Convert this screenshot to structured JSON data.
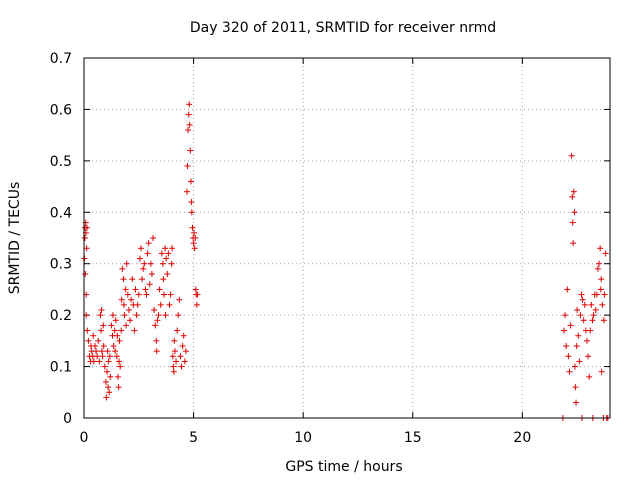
{
  "chart_data": {
    "type": "scatter",
    "title": "Day 320 of 2011, SRMTID for receiver nrmd",
    "xlabel": "GPS time / hours",
    "ylabel": "SRMTID / TECUs",
    "xlim": [
      0,
      24
    ],
    "ylim": [
      0,
      0.7
    ],
    "xticks": [
      0,
      5,
      10,
      15,
      20
    ],
    "yticks": [
      0,
      0.1,
      0.2,
      0.3,
      0.4,
      0.5,
      0.6,
      0.7
    ],
    "grid": true,
    "marker": "plus",
    "color": "#e00000",
    "series": [
      {
        "name": "nrmd",
        "points": [
          [
            0.02,
            0.31
          ],
          [
            0.04,
            0.35
          ],
          [
            0.05,
            0.37
          ],
          [
            0.06,
            0.28
          ],
          [
            0.08,
            0.38
          ],
          [
            0.09,
            0.36
          ],
          [
            0.1,
            0.24
          ],
          [
            0.1,
            0.2
          ],
          [
            0.12,
            0.33
          ],
          [
            0.14,
            0.37
          ],
          [
            0.15,
            0.17
          ],
          [
            0.2,
            0.15
          ],
          [
            0.25,
            0.12
          ],
          [
            0.3,
            0.11
          ],
          [
            0.32,
            0.14
          ],
          [
            0.35,
            0.13
          ],
          [
            0.4,
            0.12
          ],
          [
            0.42,
            0.16
          ],
          [
            0.45,
            0.11
          ],
          [
            0.5,
            0.14
          ],
          [
            0.55,
            0.13
          ],
          [
            0.6,
            0.12
          ],
          [
            0.65,
            0.15
          ],
          [
            0.7,
            0.11
          ],
          [
            0.75,
            0.2
          ],
          [
            0.78,
            0.17
          ],
          [
            0.8,
            0.21
          ],
          [
            0.82,
            0.13
          ],
          [
            0.85,
            0.12
          ],
          [
            0.88,
            0.18
          ],
          [
            0.9,
            0.14
          ],
          [
            0.95,
            0.1
          ],
          [
            1.0,
            0.07
          ],
          [
            1.02,
            0.04
          ],
          [
            1.05,
            0.09
          ],
          [
            1.08,
            0.13
          ],
          [
            1.1,
            0.06
          ],
          [
            1.12,
            0.11
          ],
          [
            1.15,
            0.05
          ],
          [
            1.18,
            0.12
          ],
          [
            1.2,
            0.08
          ],
          [
            1.25,
            0.18
          ],
          [
            1.3,
            0.16
          ],
          [
            1.32,
            0.2
          ],
          [
            1.35,
            0.14
          ],
          [
            1.4,
            0.17
          ],
          [
            1.42,
            0.13
          ],
          [
            1.45,
            0.19
          ],
          [
            1.5,
            0.12
          ],
          [
            1.52,
            0.16
          ],
          [
            1.55,
            0.08
          ],
          [
            1.58,
            0.06
          ],
          [
            1.6,
            0.11
          ],
          [
            1.62,
            0.15
          ],
          [
            1.65,
            0.1
          ],
          [
            1.7,
            0.17
          ],
          [
            1.72,
            0.23
          ],
          [
            1.75,
            0.29
          ],
          [
            1.8,
            0.27
          ],
          [
            1.82,
            0.22
          ],
          [
            1.85,
            0.2
          ],
          [
            1.9,
            0.25
          ],
          [
            1.92,
            0.18
          ],
          [
            1.95,
            0.3
          ],
          [
            2.0,
            0.24
          ],
          [
            2.05,
            0.21
          ],
          [
            2.1,
            0.19
          ],
          [
            2.15,
            0.23
          ],
          [
            2.2,
            0.27
          ],
          [
            2.25,
            0.22
          ],
          [
            2.3,
            0.17
          ],
          [
            2.35,
            0.25
          ],
          [
            2.4,
            0.2
          ],
          [
            2.45,
            0.22
          ],
          [
            2.5,
            0.24
          ],
          [
            2.55,
            0.31
          ],
          [
            2.6,
            0.33
          ],
          [
            2.65,
            0.27
          ],
          [
            2.7,
            0.29
          ],
          [
            2.75,
            0.3
          ],
          [
            2.8,
            0.25
          ],
          [
            2.85,
            0.24
          ],
          [
            2.9,
            0.32
          ],
          [
            2.95,
            0.34
          ],
          [
            3.0,
            0.26
          ],
          [
            3.05,
            0.3
          ],
          [
            3.1,
            0.28
          ],
          [
            3.15,
            0.35
          ],
          [
            3.2,
            0.21
          ],
          [
            3.25,
            0.18
          ],
          [
            3.3,
            0.15
          ],
          [
            3.32,
            0.13
          ],
          [
            3.35,
            0.19
          ],
          [
            3.4,
            0.2
          ],
          [
            3.45,
            0.25
          ],
          [
            3.5,
            0.22
          ],
          [
            3.55,
            0.32
          ],
          [
            3.6,
            0.3
          ],
          [
            3.62,
            0.27
          ],
          [
            3.65,
            0.24
          ],
          [
            3.7,
            0.33
          ],
          [
            3.72,
            0.2
          ],
          [
            3.75,
            0.31
          ],
          [
            3.8,
            0.28
          ],
          [
            3.85,
            0.32
          ],
          [
            3.9,
            0.22
          ],
          [
            3.95,
            0.24
          ],
          [
            4.0,
            0.3
          ],
          [
            4.02,
            0.33
          ],
          [
            4.05,
            0.12
          ],
          [
            4.08,
            0.1
          ],
          [
            4.1,
            0.09
          ],
          [
            4.12,
            0.15
          ],
          [
            4.15,
            0.13
          ],
          [
            4.2,
            0.11
          ],
          [
            4.25,
            0.17
          ],
          [
            4.3,
            0.2
          ],
          [
            4.35,
            0.23
          ],
          [
            4.4,
            0.12
          ],
          [
            4.45,
            0.1
          ],
          [
            4.5,
            0.14
          ],
          [
            4.55,
            0.16
          ],
          [
            4.6,
            0.11
          ],
          [
            4.65,
            0.13
          ],
          [
            4.7,
            0.44
          ],
          [
            4.72,
            0.49
          ],
          [
            4.75,
            0.56
          ],
          [
            4.78,
            0.59
          ],
          [
            4.8,
            0.61
          ],
          [
            4.82,
            0.57
          ],
          [
            4.85,
            0.52
          ],
          [
            4.88,
            0.46
          ],
          [
            4.9,
            0.42
          ],
          [
            4.92,
            0.4
          ],
          [
            4.95,
            0.37
          ],
          [
            4.98,
            0.35
          ],
          [
            5.0,
            0.34
          ],
          [
            5.02,
            0.36
          ],
          [
            5.05,
            0.33
          ],
          [
            5.08,
            0.35
          ],
          [
            5.1,
            0.25
          ],
          [
            5.12,
            0.24
          ],
          [
            5.15,
            0.22
          ],
          [
            5.18,
            0.24
          ],
          [
            21.85,
            0.0
          ],
          [
            21.9,
            0.17
          ],
          [
            21.95,
            0.2
          ],
          [
            22.0,
            0.14
          ],
          [
            22.05,
            0.25
          ],
          [
            22.1,
            0.12
          ],
          [
            22.15,
            0.09
          ],
          [
            22.2,
            0.18
          ],
          [
            22.25,
            0.51
          ],
          [
            22.28,
            0.43
          ],
          [
            22.3,
            0.38
          ],
          [
            22.32,
            0.34
          ],
          [
            22.35,
            0.44
          ],
          [
            22.38,
            0.4
          ],
          [
            22.4,
            0.1
          ],
          [
            22.42,
            0.06
          ],
          [
            22.45,
            0.03
          ],
          [
            22.48,
            0.14
          ],
          [
            22.5,
            0.21
          ],
          [
            22.55,
            0.16
          ],
          [
            22.6,
            0.11
          ],
          [
            22.65,
            0.2
          ],
          [
            22.7,
            0.24
          ],
          [
            22.72,
            0.0
          ],
          [
            22.75,
            0.23
          ],
          [
            22.8,
            0.19
          ],
          [
            22.85,
            0.22
          ],
          [
            22.9,
            0.17
          ],
          [
            22.95,
            0.15
          ],
          [
            23.0,
            0.12
          ],
          [
            23.05,
            0.08
          ],
          [
            23.1,
            0.17
          ],
          [
            23.15,
            0.22
          ],
          [
            23.2,
            0.19
          ],
          [
            23.22,
            0.0
          ],
          [
            23.25,
            0.2
          ],
          [
            23.3,
            0.24
          ],
          [
            23.35,
            0.21
          ],
          [
            23.4,
            0.24
          ],
          [
            23.45,
            0.29
          ],
          [
            23.5,
            0.3
          ],
          [
            23.55,
            0.33
          ],
          [
            23.58,
            0.25
          ],
          [
            23.6,
            0.27
          ],
          [
            23.62,
            0.09
          ],
          [
            23.65,
            0.22
          ],
          [
            23.7,
            0.0
          ],
          [
            23.72,
            0.19
          ],
          [
            23.75,
            0.24
          ],
          [
            23.8,
            0.32
          ],
          [
            23.85,
            0.0
          ],
          [
            23.9,
            0.0
          ]
        ]
      }
    ]
  }
}
